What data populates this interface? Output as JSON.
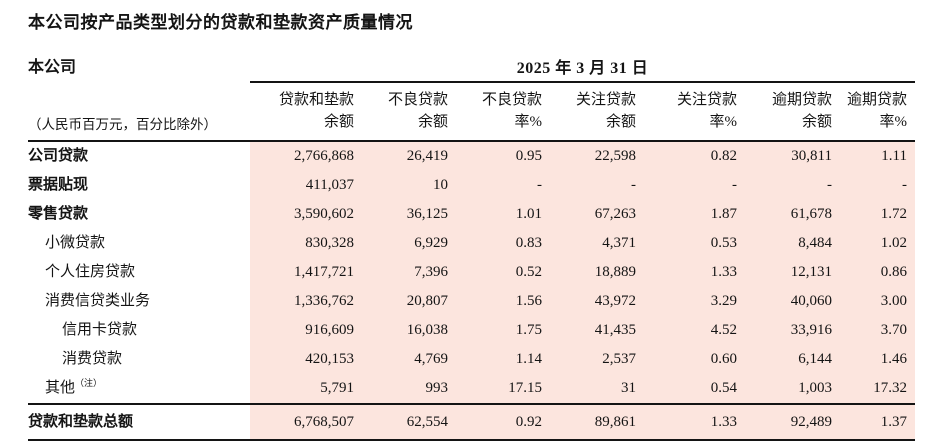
{
  "page": {
    "title": "本公司按产品类型划分的贷款和垫款资产质量情况",
    "company_label": "本公司",
    "date_header": "2025 年 3 月 31 日",
    "unit_note": "（人民币百万元，百分比除外）"
  },
  "colors": {
    "highlight_bg": "#fce5de",
    "text": "#141414",
    "rule": "#141414"
  },
  "table": {
    "columns": [
      {
        "line1": "贷款和垫款",
        "line2": "余额"
      },
      {
        "line1": "不良贷款",
        "line2": "余额"
      },
      {
        "line1": "不良贷款",
        "line2": "率%"
      },
      {
        "line1": "关注贷款",
        "line2": "余额"
      },
      {
        "line1": "关注贷款",
        "line2": "率%"
      },
      {
        "line1": "逾期贷款",
        "line2": "余额"
      },
      {
        "line1": "逾期贷款",
        "line2": "率%"
      }
    ],
    "rows": [
      {
        "label": "公司贷款",
        "values": [
          "2,766,868",
          "26,419",
          "0.95",
          "22,598",
          "0.82",
          "30,811",
          "1.11"
        ]
      },
      {
        "label": "票据贴现",
        "values": [
          "411,037",
          "10",
          "-",
          "-",
          "-",
          "-",
          "-"
        ]
      },
      {
        "label": "零售贷款",
        "values": [
          "3,590,602",
          "36,125",
          "1.01",
          "67,263",
          "1.87",
          "61,678",
          "1.72"
        ]
      },
      {
        "label": "小微贷款",
        "values": [
          "830,328",
          "6,929",
          "0.83",
          "4,371",
          "0.53",
          "8,484",
          "1.02"
        ]
      },
      {
        "label": "个人住房贷款",
        "values": [
          "1,417,721",
          "7,396",
          "0.52",
          "18,889",
          "1.33",
          "12,131",
          "0.86"
        ]
      },
      {
        "label": "消费信贷类业务",
        "values": [
          "1,336,762",
          "20,807",
          "1.56",
          "43,972",
          "3.29",
          "40,060",
          "3.00"
        ]
      },
      {
        "label": "信用卡贷款",
        "values": [
          "916,609",
          "16,038",
          "1.75",
          "41,435",
          "4.52",
          "33,916",
          "3.70"
        ]
      },
      {
        "label": "消费贷款",
        "values": [
          "420,153",
          "4,769",
          "1.14",
          "2,537",
          "0.60",
          "6,144",
          "1.46"
        ]
      },
      {
        "label": "其他",
        "note": "（注）",
        "values": [
          "5,791",
          "993",
          "17.15",
          "31",
          "0.54",
          "1,003",
          "17.32"
        ]
      }
    ],
    "total_row": {
      "label": "贷款和垫款总额",
      "values": [
        "6,768,507",
        "62,554",
        "0.92",
        "89,861",
        "1.33",
        "92,489",
        "1.37"
      ]
    }
  }
}
